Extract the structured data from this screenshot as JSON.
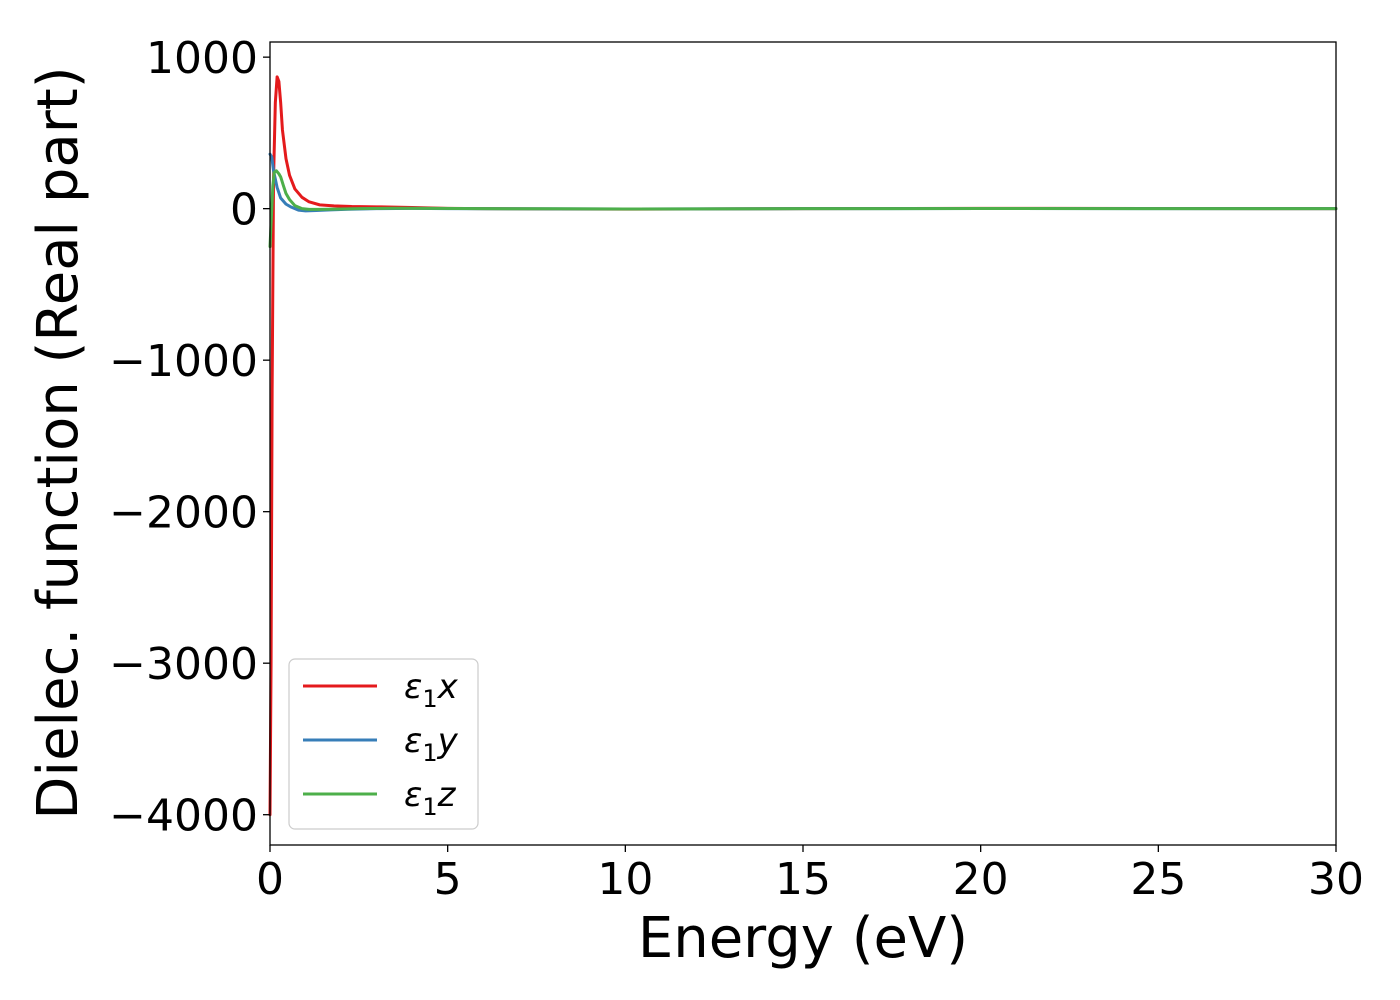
{
  "chart_data": {
    "type": "line",
    "title": "",
    "xlabel": "Energy (eV)",
    "ylabel": "Dielec. function (Real part)",
    "xlim": [
      0,
      30
    ],
    "ylim": [
      -4200,
      1100
    ],
    "xticks": [
      0,
      5,
      10,
      15,
      20,
      25,
      30
    ],
    "xtick_labels": [
      "0",
      "5",
      "10",
      "15",
      "20",
      "25",
      "30"
    ],
    "yticks": [
      -4000,
      -3000,
      -2000,
      -1000,
      0,
      1000
    ],
    "ytick_labels": [
      "−4000",
      "−3000",
      "−2000",
      "−1000",
      "0",
      "1000"
    ],
    "grid": false,
    "legend": {
      "placement": "lower-left",
      "entries": [
        {
          "base": "ε",
          "sub": "1",
          "suffix": "x",
          "color": "#e41a1c"
        },
        {
          "base": "ε",
          "sub": "1",
          "suffix": "y",
          "color": "#377eb8"
        },
        {
          "base": "ε",
          "sub": "1",
          "suffix": "z",
          "color": "#4daf4a"
        }
      ]
    },
    "series": [
      {
        "color": "#e41a1c",
        "x": [
          0.0,
          0.03,
          0.06,
          0.1,
          0.15,
          0.2,
          0.25,
          0.3,
          0.35,
          0.45,
          0.55,
          0.7,
          0.9,
          1.1,
          1.4,
          1.8,
          2.3,
          3.0,
          4.0,
          5.0,
          6.0,
          8.0,
          10.0,
          12.0,
          15.0,
          18.0,
          20.0,
          22.0,
          25.0,
          28.0,
          30.0
        ],
        "y": [
          -4000,
          -3000,
          -1200,
          200,
          700,
          870,
          840,
          700,
          520,
          330,
          220,
          130,
          75,
          45,
          25,
          18,
          14,
          12,
          8,
          2,
          0,
          -2,
          -3,
          -2,
          0,
          1,
          2,
          2,
          1,
          0,
          0
        ]
      },
      {
        "color": "#377eb8",
        "x": [
          0.0,
          0.05,
          0.1,
          0.2,
          0.3,
          0.45,
          0.6,
          0.8,
          1.0,
          1.3,
          1.7,
          2.2,
          3.0,
          4.0,
          5.0,
          7.0,
          10.0,
          15.0,
          20.0,
          25.0,
          30.0
        ],
        "y": [
          360,
          340,
          250,
          140,
          70,
          30,
          10,
          -10,
          -15,
          -12,
          -8,
          -4,
          0,
          2,
          0,
          -1,
          -2,
          0,
          1,
          0,
          0
        ]
      },
      {
        "color": "#4daf4a",
        "x": [
          0.0,
          0.04,
          0.08,
          0.12,
          0.18,
          0.25,
          0.3,
          0.38,
          0.45,
          0.55,
          0.7,
          0.9,
          1.1,
          1.4,
          1.8,
          2.5,
          3.5,
          4.5,
          6.0,
          8.0,
          10.0,
          15.0,
          20.0,
          25.0,
          30.0
        ],
        "y": [
          -250,
          -50,
          150,
          240,
          250,
          230,
          210,
          150,
          100,
          60,
          20,
          0,
          -5,
          -5,
          -3,
          0,
          3,
          2,
          0,
          -1,
          -2,
          0,
          1,
          0,
          0
        ]
      }
    ]
  }
}
